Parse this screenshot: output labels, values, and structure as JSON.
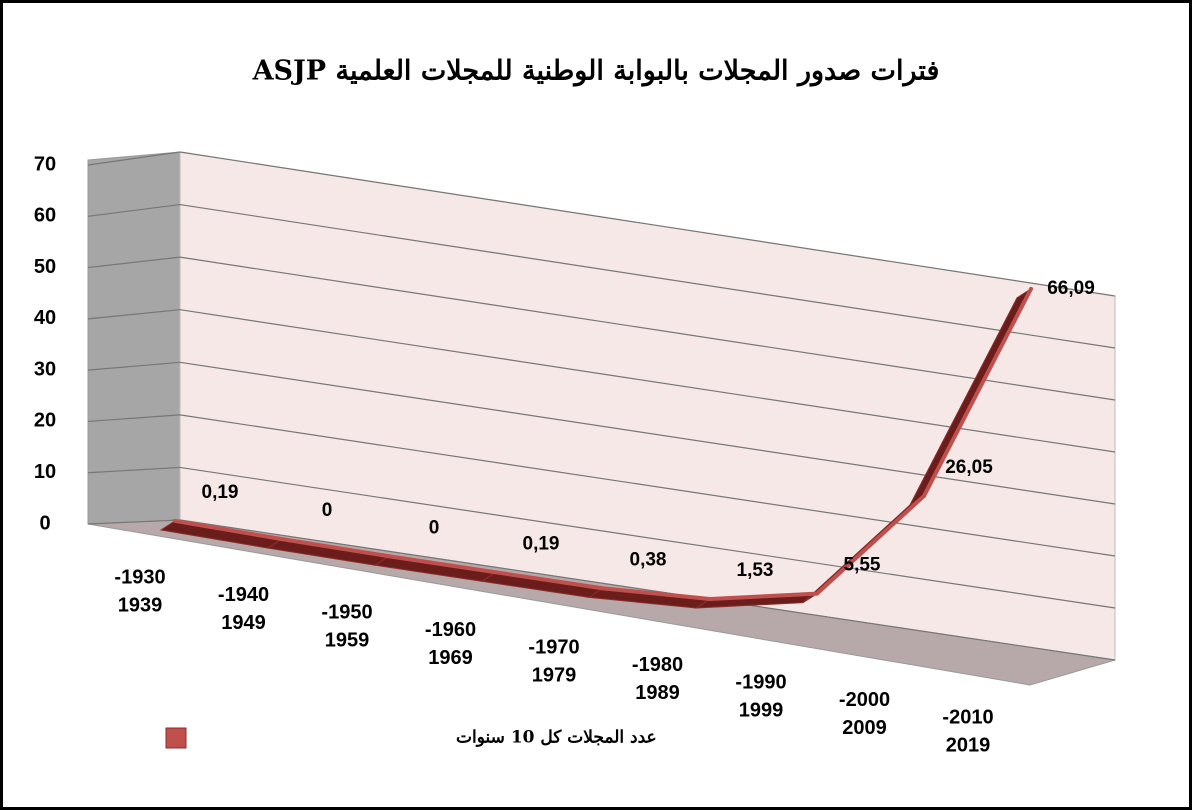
{
  "chart_data": {
    "type": "line3d",
    "title": "فترات صدور المجلات بالبوابة الوطنية للمجلات العلمية ASJP",
    "categories": [
      [
        "-1930",
        "1939"
      ],
      [
        "-1940",
        "1949"
      ],
      [
        "-1950",
        "1959"
      ],
      [
        "-1960",
        "1969"
      ],
      [
        "-1970",
        "1979"
      ],
      [
        "-1980",
        "1989"
      ],
      [
        "-1990",
        "1999"
      ],
      [
        "-2000",
        "2009"
      ],
      [
        "-2010",
        "2019"
      ]
    ],
    "series": [
      {
        "name": "عدد المجلات كل 10 سنوات",
        "color": "#c0504d",
        "values": [
          0.19,
          0,
          0,
          0.19,
          0.38,
          1.53,
          5.55,
          26.05,
          66.09
        ],
        "value_labels": [
          "0,19",
          "0",
          "0",
          "0,19",
          "0,38",
          "1,53",
          "5,55",
          "26,05",
          "66,09"
        ]
      }
    ],
    "ylim": [
      0,
      70
    ],
    "yticks": [
      0,
      10,
      20,
      30,
      40,
      50,
      60,
      70
    ],
    "grid": true,
    "legend": "bottom-left"
  }
}
